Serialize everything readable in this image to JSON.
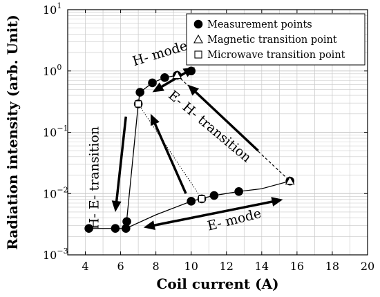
{
  "chart_data": {
    "type": "scatter",
    "title": "",
    "xlabel": "Coil current (A)",
    "ylabel": "Radiation intensity (arb. Unit)",
    "xlim": [
      3,
      20
    ],
    "ylim_log10": [
      -3,
      1
    ],
    "y_scale": "log",
    "grid": true,
    "legend_position": "top-right",
    "x_ticks": [
      {
        "value": 4,
        "label": "4"
      },
      {
        "value": 6,
        "label": "6"
      },
      {
        "value": 8,
        "label": "8"
      },
      {
        "value": 10,
        "label": "10"
      },
      {
        "value": 12,
        "label": "12"
      },
      {
        "value": 14,
        "label": "14"
      },
      {
        "value": 16,
        "label": "16"
      },
      {
        "value": 18,
        "label": "18"
      },
      {
        "value": 20,
        "label": "20"
      }
    ],
    "y_ticks": [
      {
        "exp": -3,
        "base": "10",
        "sup": "−3"
      },
      {
        "exp": -2,
        "base": "10",
        "sup": "−2"
      },
      {
        "exp": -1,
        "base": "10",
        "sup": "−1"
      },
      {
        "exp": 0,
        "base": "10",
        "sup": "0"
      },
      {
        "exp": 1,
        "base": "10",
        "sup": "1"
      }
    ],
    "legend": [
      {
        "marker": "filled-circle",
        "label": "Measurement points"
      },
      {
        "marker": "open-triangle",
        "label": "Magnetic transition point"
      },
      {
        "marker": "open-square",
        "label": "Microwave transition point"
      }
    ],
    "series": [
      {
        "name": "Measurement points",
        "marker": "filled-circle",
        "points": [
          {
            "x": 4.2,
            "y": 0.0027
          },
          {
            "x": 5.7,
            "y": 0.0027
          },
          {
            "x": 6.3,
            "y": 0.0027
          },
          {
            "x": 6.35,
            "y": 0.0035
          },
          {
            "x": 10.0,
            "y": 0.0075
          },
          {
            "x": 11.3,
            "y": 0.0093
          },
          {
            "x": 12.7,
            "y": 0.0108
          },
          {
            "x": 7.1,
            "y": 0.45
          },
          {
            "x": 7.8,
            "y": 0.64
          },
          {
            "x": 8.5,
            "y": 0.78
          },
          {
            "x": 10.0,
            "y": 1.0
          }
        ]
      },
      {
        "name": "Magnetic transition point",
        "marker": "open-triangle",
        "points": [
          {
            "x": 9.2,
            "y": 0.85
          },
          {
            "x": 15.6,
            "y": 0.016
          }
        ]
      },
      {
        "name": "Microwave transition point",
        "marker": "open-square",
        "points": [
          {
            "x": 7.0,
            "y": 0.29
          },
          {
            "x": 10.6,
            "y": 0.0082
          }
        ]
      }
    ],
    "curve_solid": [
      {
        "x": 4.2,
        "y": 0.0027
      },
      {
        "x": 6.3,
        "y": 0.0027
      },
      {
        "x": 8.0,
        "y": 0.0045
      },
      {
        "x": 10.0,
        "y": 0.0075
      },
      {
        "x": 11.3,
        "y": 0.0093
      },
      {
        "x": 12.7,
        "y": 0.0108
      },
      {
        "x": 14.0,
        "y": 0.012
      },
      {
        "x": 15.6,
        "y": 0.016
      }
    ],
    "curve_vertical": [
      {
        "x": 6.3,
        "y": 0.0027
      },
      {
        "x": 7.0,
        "y": 0.29
      },
      {
        "x": 7.1,
        "y": 0.45
      },
      {
        "x": 7.8,
        "y": 0.64
      },
      {
        "x": 8.5,
        "y": 0.78
      },
      {
        "x": 9.2,
        "y": 0.85
      },
      {
        "x": 10.0,
        "y": 1.0
      }
    ],
    "dashed_link": [
      {
        "x": 9.2,
        "y": 0.85
      },
      {
        "x": 15.6,
        "y": 0.016
      }
    ],
    "dotted_link": [
      {
        "x": 7.0,
        "y": 0.29
      },
      {
        "x": 10.6,
        "y": 0.0082
      }
    ],
    "arrows": [
      {
        "name": "arrow-h-mode",
        "from": {
          "x": 10.2,
          "y": 1.15
        },
        "to": {
          "x": 7.8,
          "y": 0.45
        },
        "double": true
      },
      {
        "name": "arrow-h-e-transition",
        "from": {
          "x": 6.3,
          "y": 0.18
        },
        "to": {
          "x": 5.7,
          "y": 0.005
        }
      },
      {
        "name": "arrow-e-h-transition-1",
        "from": {
          "x": 9.7,
          "y": 0.01
        },
        "to": {
          "x": 7.7,
          "y": 0.2
        }
      },
      {
        "name": "arrow-e-h-transition-2",
        "from": {
          "x": 13.8,
          "y": 0.05
        },
        "to": {
          "x": 9.8,
          "y": 0.6
        }
      },
      {
        "name": "arrow-e-mode",
        "from": {
          "x": 7.3,
          "y": 0.0028
        },
        "to": {
          "x": 15.2,
          "y": 0.008
        },
        "double": true
      }
    ],
    "annotations": [
      {
        "text": "H- mode",
        "x": 8.3,
        "y": 1.65,
        "rotate": -17,
        "size": 19
      },
      {
        "text": "H- E- transition",
        "x": 4.75,
        "y": 0.018,
        "rotate": -90,
        "size": 19
      },
      {
        "text": "E- H- transition",
        "x": 10.9,
        "y": 0.11,
        "rotate": 40,
        "size": 19
      },
      {
        "text": "E- mode",
        "x": 12.5,
        "y": 0.0032,
        "rotate": -14,
        "size": 19
      }
    ]
  }
}
